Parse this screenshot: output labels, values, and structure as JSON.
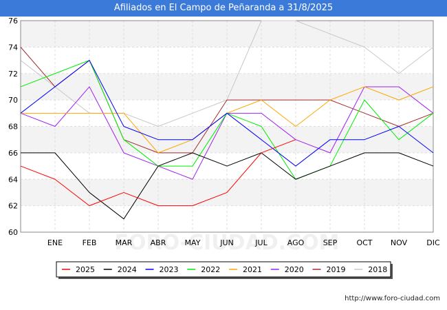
{
  "header": {
    "title": "Afiliados en El Campo de Peñaranda a 31/8/2025"
  },
  "footer": {
    "credit": "http://www.foro-ciudad.com"
  },
  "watermark": {
    "text": "FORO-CIUDAD.COM"
  },
  "chart_data": {
    "type": "line",
    "title": "Afiliados en El Campo de Peñaranda a 31/8/2025",
    "xlabel": "",
    "ylabel": "",
    "x_labels": [
      "",
      "ENE",
      "FEB",
      "MAR",
      "ABR",
      "MAY",
      "JUN",
      "JUL",
      "AGO",
      "SEP",
      "OCT",
      "NOV",
      "DIC"
    ],
    "ylim": [
      60,
      76
    ],
    "yticks": [
      60,
      62,
      64,
      66,
      68,
      70,
      72,
      74,
      76
    ],
    "grid": true,
    "legend_position": "bottom",
    "series": [
      {
        "name": "2025",
        "color": "#ff0000",
        "values": [
          65,
          64,
          62,
          63,
          62,
          62,
          63,
          66,
          67,
          null,
          null,
          null,
          null
        ]
      },
      {
        "name": "2024",
        "color": "#000000",
        "values": [
          66,
          66,
          63,
          61,
          65,
          66,
          65,
          66,
          64,
          65,
          66,
          66,
          65
        ]
      },
      {
        "name": "2023",
        "color": "#0000ff",
        "values": [
          69,
          71,
          73,
          68,
          67,
          67,
          69,
          67,
          65,
          67,
          67,
          68,
          66
        ]
      },
      {
        "name": "2022",
        "color": "#00ee00",
        "values": [
          71,
          72,
          73,
          67,
          65,
          65,
          69,
          68,
          64,
          65,
          70,
          67,
          69
        ]
      },
      {
        "name": "2021",
        "color": "#ffa500",
        "values": [
          69,
          69,
          69,
          69,
          66,
          67,
          69,
          70,
          68,
          70,
          71,
          70,
          71
        ]
      },
      {
        "name": "2020",
        "color": "#a020f0",
        "values": [
          69,
          68,
          71,
          66,
          65,
          64,
          69,
          69,
          67,
          66,
          71,
          71,
          69
        ]
      },
      {
        "name": "2019",
        "color": "#a52a2a",
        "values": [
          74,
          71,
          73,
          67,
          66,
          66,
          70,
          70,
          70,
          70,
          69,
          68,
          69
        ]
      },
      {
        "name": "2018",
        "color": "#c8c8c8",
        "values": [
          73,
          71,
          69,
          69,
          68,
          69,
          70,
          76,
          76,
          75,
          74,
          72,
          74
        ]
      }
    ]
  }
}
